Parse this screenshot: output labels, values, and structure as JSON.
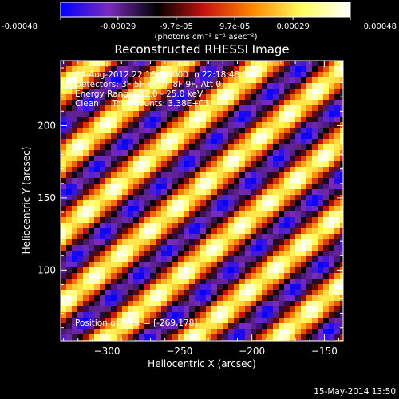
{
  "colorbar": {
    "tick_labels": [
      "-0.00048",
      "-0.00029",
      "-9.7e-05",
      "9.7e-05",
      "0.00029",
      "0.00048"
    ],
    "tick_values": [
      -0.00048,
      -0.00029,
      -9.7e-05,
      9.7e-05,
      0.00029,
      0.00048
    ],
    "range": [
      -0.00048,
      0.00048
    ],
    "units_label": "(photons cm⁻² s⁻¹ asec⁻²)",
    "colors": [
      "#0000ff",
      "#7a2bbd",
      "#000000",
      "#c81410",
      "#ff8a00",
      "#ffff60",
      "#ffffff"
    ]
  },
  "footer_timestamp": "15-May-2014 13:50",
  "chart_data": {
    "type": "heatmap",
    "title": "Reconstructed RHESSI Image",
    "xlabel": "Heliocentric X (arcsec)",
    "ylabel": "Heliocentric Y (arcsec)",
    "xlim": [
      -332,
      -137
    ],
    "ylim": [
      51,
      245
    ],
    "xticks": [
      -300,
      -250,
      -200,
      -150
    ],
    "xtick_labels": [
      "−300",
      "−250",
      "−200",
      "−150"
    ],
    "yticks": [
      100,
      150,
      200
    ],
    "ytick_labels": [
      "100",
      "150",
      "200"
    ],
    "annotations": [
      "24-Aug-2012 22:16:52.000 to 22:18:48.000",
      "Detectors: 3F 5F 6F 7F 8F 9F, Att 0",
      "Energy Range: 12.0 - 25.0 keV",
      "Clean     Total counts: 3.38E+03"
    ],
    "peak_label": "Position of Peak = [-269,178]",
    "peak_position": [
      -269,
      178
    ],
    "pattern": {
      "description_values": "diagonal fringe stripes, amplitude relative to colorbar range",
      "stripe_angle_deg": 40,
      "stripe_period_arcsec": 38,
      "modulation_period_arcsec": 25,
      "amplitude": 0.00048
    }
  }
}
